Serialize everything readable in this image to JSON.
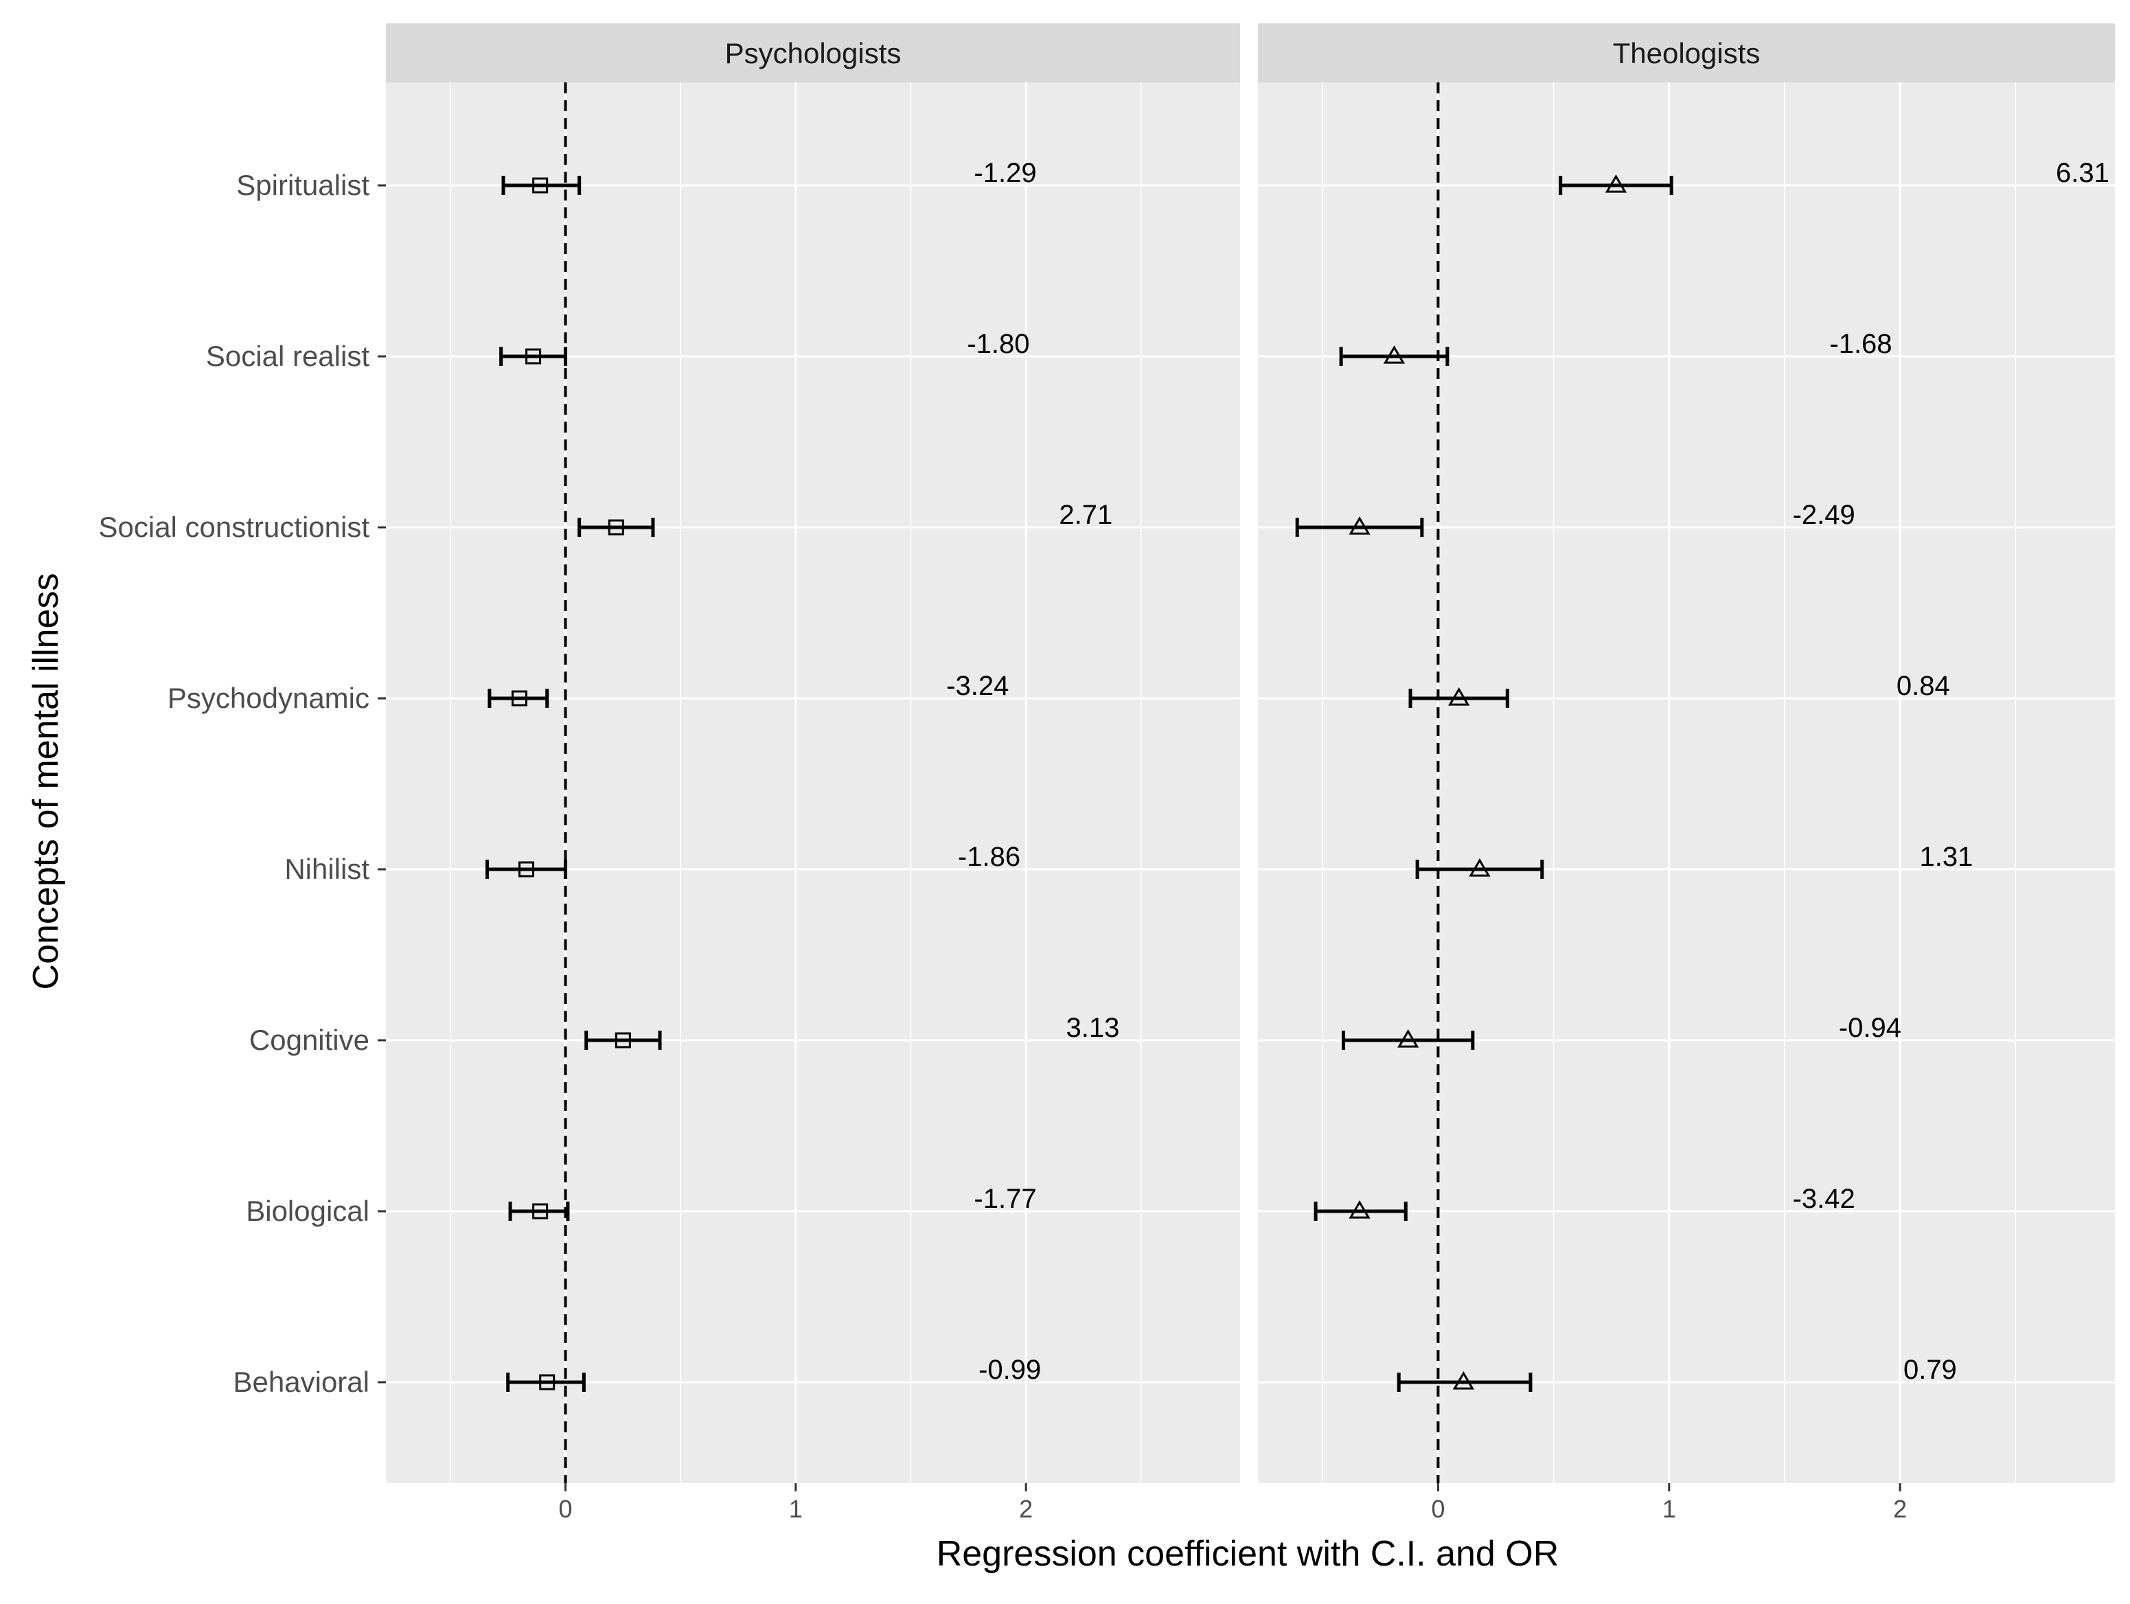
{
  "chart_data": {
    "type": "forest",
    "xlabel": "Regression coefficient with C.I. and OR",
    "ylabel": "Concepts of mental illness",
    "categories": [
      "Spiritualist",
      "Social realist",
      "Social constructionist",
      "Psychodynamic",
      "Nihilist",
      "Cognitive",
      "Biological",
      "Behavioral"
    ],
    "x_ticks": [
      "0",
      "1",
      "2"
    ],
    "xlim": [
      -0.78,
      2.93
    ],
    "reference_line": 0,
    "panels": [
      {
        "name": "Psychologists",
        "marker": "square",
        "points": [
          {
            "category": "Spiritualist",
            "estimate": -0.11,
            "lower": -0.27,
            "upper": 0.06,
            "or_label": "-1.29"
          },
          {
            "category": "Social realist",
            "estimate": -0.14,
            "lower": -0.28,
            "upper": 0.0,
            "or_label": "-1.80"
          },
          {
            "category": "Social constructionist",
            "estimate": 0.22,
            "lower": 0.06,
            "upper": 0.38,
            "or_label": "2.71"
          },
          {
            "category": "Psychodynamic",
            "estimate": -0.2,
            "lower": -0.33,
            "upper": -0.08,
            "or_label": "-3.24"
          },
          {
            "category": "Nihilist",
            "estimate": -0.17,
            "lower": -0.34,
            "upper": 0.0,
            "or_label": "-1.86"
          },
          {
            "category": "Cognitive",
            "estimate": 0.25,
            "lower": 0.09,
            "upper": 0.41,
            "or_label": "3.13"
          },
          {
            "category": "Biological",
            "estimate": -0.11,
            "lower": -0.24,
            "upper": 0.01,
            "or_label": "-1.77"
          },
          {
            "category": "Behavioral",
            "estimate": -0.08,
            "lower": -0.25,
            "upper": 0.08,
            "or_label": "-0.99"
          }
        ]
      },
      {
        "name": "Theologists",
        "marker": "triangle",
        "points": [
          {
            "category": "Spiritualist",
            "estimate": 0.77,
            "lower": 0.53,
            "upper": 1.01,
            "or_label": "6.31"
          },
          {
            "category": "Social realist",
            "estimate": -0.19,
            "lower": -0.42,
            "upper": 0.04,
            "or_label": "-1.68"
          },
          {
            "category": "Social constructionist",
            "estimate": -0.34,
            "lower": -0.61,
            "upper": -0.07,
            "or_label": "-2.49"
          },
          {
            "category": "Psychodynamic",
            "estimate": 0.09,
            "lower": -0.12,
            "upper": 0.3,
            "or_label": "0.84"
          },
          {
            "category": "Nihilist",
            "estimate": 0.18,
            "lower": -0.09,
            "upper": 0.45,
            "or_label": "1.31"
          },
          {
            "category": "Cognitive",
            "estimate": -0.13,
            "lower": -0.41,
            "upper": 0.15,
            "or_label": "-0.94"
          },
          {
            "category": "Biological",
            "estimate": -0.34,
            "lower": -0.53,
            "upper": -0.14,
            "or_label": "-3.42"
          },
          {
            "category": "Behavioral",
            "estimate": 0.11,
            "lower": -0.17,
            "upper": 0.4,
            "or_label": "0.79"
          }
        ]
      }
    ],
    "or_label_x": {
      "Psychologists": [
        1.91,
        1.88,
        2.26,
        1.79,
        1.84,
        2.29,
        1.91,
        1.93
      ],
      "Theologists": [
        2.79,
        1.83,
        1.67,
        2.1,
        2.2,
        1.87,
        1.67,
        2.13
      ]
    },
    "colors": {
      "panel_background": "#ebebeb",
      "strip_background": "#d9d9d9",
      "gridline": "#ffffff",
      "ink": "#000000"
    }
  }
}
